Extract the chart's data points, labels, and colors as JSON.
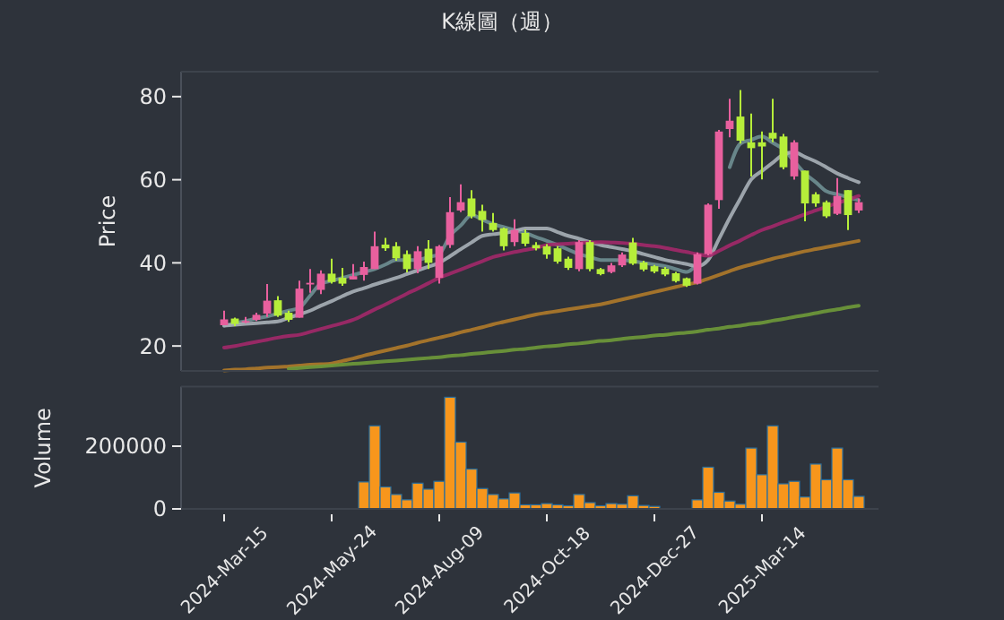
{
  "chart_data": [
    {
      "type": "candlestick",
      "title": "K線圖（週）",
      "ylabel": "Price",
      "tick_labels": "y",
      "categories": [
        null,
        null,
        null,
        null,
        null,
        null,
        null,
        null,
        null,
        null,
        null,
        null,
        null,
        null,
        null,
        null,
        null,
        null,
        null,
        null,
        null,
        null,
        null,
        null,
        null,
        null,
        null,
        null,
        null,
        null,
        null,
        null,
        null,
        null,
        null,
        null,
        null,
        null,
        null,
        null,
        null,
        null,
        null,
        null,
        null,
        null,
        null,
        null,
        null,
        null,
        null,
        null,
        null,
        null,
        null,
        null,
        null,
        null,
        null,
        null
      ],
      "ohlc": [
        [
          25.0,
          28.5,
          25.0,
          26.4
        ],
        [
          26.6,
          26.8,
          24.8,
          25.3
        ],
        [
          25.9,
          27.0,
          25.5,
          26.0
        ],
        [
          26.3,
          28.0,
          26.0,
          27.5
        ],
        [
          27.8,
          34.9,
          27.0,
          30.9
        ],
        [
          31.0,
          32.0,
          27.0,
          27.3
        ],
        [
          28.0,
          28.5,
          25.8,
          26.3
        ],
        [
          26.8,
          35.7,
          26.8,
          33.8
        ],
        [
          34.8,
          38.5,
          32.8,
          35.2
        ],
        [
          33.5,
          38.2,
          32.5,
          37.4
        ],
        [
          37.4,
          41.0,
          35.0,
          35.4
        ],
        [
          36.4,
          38.8,
          34.5,
          35.0
        ],
        [
          36.0,
          39.7,
          36.0,
          36.8
        ],
        [
          37.1,
          40.3,
          35.7,
          39.0
        ],
        [
          38.5,
          47.5,
          38.5,
          44.0
        ],
        [
          44.4,
          46.0,
          42.9,
          43.5
        ],
        [
          44.0,
          45.0,
          40.5,
          41.1
        ],
        [
          42.1,
          43.0,
          37.7,
          38.5
        ],
        [
          38.5,
          44.0,
          37.5,
          42.8
        ],
        [
          43.4,
          45.5,
          38.5,
          40.0
        ],
        [
          36.4,
          44.3,
          35.0,
          44.0
        ],
        [
          44.3,
          55.8,
          43.6,
          52.2
        ],
        [
          52.6,
          58.9,
          52.2,
          54.6
        ],
        [
          55.5,
          57.5,
          50.7,
          51.2
        ],
        [
          52.5,
          54.0,
          47.5,
          50.3
        ],
        [
          49.6,
          52.0,
          47.5,
          47.9
        ],
        [
          48.3,
          48.5,
          43.0,
          44.0
        ],
        [
          45.0,
          50.5,
          44.0,
          47.9
        ],
        [
          47.2,
          48.0,
          44.0,
          44.6
        ],
        [
          44.3,
          45.0,
          43.0,
          43.5
        ],
        [
          44.0,
          44.5,
          41.0,
          42.0
        ],
        [
          43.5,
          44.0,
          39.8,
          40.3
        ],
        [
          41.0,
          41.5,
          38.3,
          38.8
        ],
        [
          38.5,
          45.5,
          38.0,
          45.0
        ],
        [
          45.0,
          45.5,
          38.0,
          38.5
        ],
        [
          38.5,
          38.8,
          37.0,
          37.3
        ],
        [
          37.8,
          40.0,
          37.5,
          39.4
        ],
        [
          39.4,
          42.5,
          39.0,
          42.0
        ],
        [
          44.9,
          46.0,
          39.5,
          39.8
        ],
        [
          40.1,
          40.5,
          38.0,
          38.4
        ],
        [
          39.2,
          39.5,
          37.5,
          37.9
        ],
        [
          38.6,
          39.0,
          36.8,
          37.2
        ],
        [
          37.5,
          37.8,
          35.3,
          35.6
        ],
        [
          36.3,
          36.5,
          34.2,
          34.5
        ],
        [
          35.0,
          42.5,
          34.8,
          42.1
        ],
        [
          42.1,
          54.3,
          41.8,
          54.0
        ],
        [
          55.1,
          72.0,
          53.0,
          71.6
        ],
        [
          72.2,
          79.5,
          70.2,
          74.2
        ],
        [
          75.2,
          81.6,
          68.7,
          69.4
        ],
        [
          69.0,
          75.9,
          60.8,
          67.6
        ],
        [
          69.0,
          71.6,
          60.1,
          68.0
        ],
        [
          71.3,
          79.5,
          69.0,
          69.9
        ],
        [
          70.4,
          71.0,
          62.5,
          63.0
        ],
        [
          60.8,
          69.5,
          60.0,
          69.0
        ],
        [
          62.2,
          62.2,
          50.0,
          54.3
        ],
        [
          56.5,
          57.0,
          53.5,
          54.3
        ],
        [
          54.6,
          55.0,
          50.8,
          51.2
        ],
        [
          51.8,
          60.4,
          51.5,
          56.1
        ],
        [
          57.5,
          57.5,
          47.9,
          51.5
        ],
        [
          52.6,
          55.5,
          52.0,
          54.6
        ]
      ],
      "colors": [
        "#e8609e",
        "#b6ee3a",
        "#e8609e",
        "#e8609e",
        "#e8609e",
        "#b6ee3a",
        "#b6ee3a",
        "#e8609e",
        "#e8609e",
        "#e8609e",
        "#b6ee3a",
        "#b6ee3a",
        "#e8609e",
        "#e8609e",
        "#e8609e",
        "#b6ee3a",
        "#b6ee3a",
        "#b6ee3a",
        "#e8609e",
        "#b6ee3a",
        "#e8609e",
        "#e8609e",
        "#e8609e",
        "#b6ee3a",
        "#b6ee3a",
        "#b6ee3a",
        "#b6ee3a",
        "#e8609e",
        "#b6ee3a",
        "#b6ee3a",
        "#b6ee3a",
        "#b6ee3a",
        "#b6ee3a",
        "#e8609e",
        "#b6ee3a",
        "#b6ee3a",
        "#e8609e",
        "#e8609e",
        "#b6ee3a",
        "#b6ee3a",
        "#b6ee3a",
        "#b6ee3a",
        "#b6ee3a",
        "#b6ee3a",
        "#e8609e",
        "#e8609e",
        "#e8609e",
        "#e8609e",
        "#b6ee3a",
        "#b6ee3a",
        "#b6ee3a",
        "#b6ee3a",
        "#b6ee3a",
        "#e8609e",
        "#b6ee3a",
        "#b6ee3a",
        "#b6ee3a",
        "#e8609e",
        "#b6ee3a",
        "#e8609e"
      ],
      "series": [
        {
          "type": "line",
          "color": "#6f8f94",
          "values": [
            24.9,
            25.5,
            26,
            26.6,
            27.1,
            27.8,
            28.5,
            29.2,
            32.1,
            35,
            35.7,
            36.4,
            37.1,
            37.8,
            38.5,
            39.6,
            40.7,
            40.7,
            40.7,
            41.4,
            42.1,
            46.5,
            49,
            51.5,
            50.4,
            49.3,
            48.6,
            47.9,
            47.2,
            46.2,
            45.3,
            44.3,
            43.2,
            42.1,
            41.4,
            40.7,
            40.7,
            40.7,
            40.4,
            40,
            39.6,
            39.2,
            38.5,
            37.8,
            40,
            null,
            null,
            63,
            68.7,
            69.6,
            70.4,
            68.9,
            67.3,
            64.4,
            61.5,
            59.4,
            57.2,
            56.5,
            55.8,
            55.1
          ]
        },
        {
          "type": "line",
          "color": "#a9b0b8",
          "values": [
            24.9,
            25.1,
            25.3,
            25.5,
            25.7,
            25.9,
            26.8,
            27.6,
            28.5,
            29.7,
            30.8,
            32,
            33.1,
            33.9,
            34.8,
            35.6,
            36.4,
            37.3,
            38.2,
            39.1,
            40,
            41.6,
            43.3,
            44.9,
            46.5,
            46.9,
            47.2,
            47.6,
            48.3,
            48.3,
            48.3,
            47.4,
            46.5,
            45.8,
            45,
            44.3,
            43.8,
            43.3,
            42.8,
            42.1,
            41.4,
            40.7,
            40.2,
            39.7,
            39.2,
            40.7,
            45.7,
            50.8,
            55.5,
            60.1,
            62.1,
            64.1,
            66.1,
            66.6,
            65.5,
            64.4,
            63,
            61.5,
            60.4,
            59.4
          ]
        },
        {
          "type": "line",
          "color": "#a3286a",
          "values": [
            19.6,
            20,
            20.5,
            21,
            21.5,
            22,
            22.4,
            22.7,
            23.4,
            24.1,
            24.8,
            25.5,
            26.3,
            27.5,
            28.8,
            30,
            31.3,
            32.6,
            33.8,
            35.1,
            36.4,
            37.4,
            38.4,
            39.4,
            40.4,
            41.4,
            42,
            42.6,
            43.1,
            43.6,
            44.3,
            44.5,
            44.6,
            44.8,
            44.9,
            45,
            44.9,
            44.8,
            44.6,
            44.3,
            44,
            43.6,
            43.1,
            42.6,
            42.1,
            41.7,
            42.9,
            44.2,
            45.4,
            46.7,
            47.9,
            48.8,
            49.8,
            50.7,
            51.7,
            52.6,
            53.5,
            54.4,
            55.2,
            56.1
          ]
        },
        {
          "type": "line",
          "color": "#b07a2a",
          "values": [
            14.1,
            14.3,
            14.4,
            14.6,
            14.8,
            14.9,
            15.1,
            15.3,
            15.5,
            15.6,
            15.8,
            16.4,
            17,
            17.7,
            18.3,
            18.9,
            19.5,
            20.1,
            20.8,
            21.4,
            22,
            22.6,
            23.3,
            23.9,
            24.5,
            25.2,
            25.8,
            26.4,
            27,
            27.6,
            28,
            28.4,
            28.8,
            29.2,
            29.6,
            30,
            30.6,
            31.2,
            31.8,
            32.4,
            33,
            33.6,
            34.2,
            34.8,
            35.3,
            36.2,
            37.1,
            38,
            38.9,
            39.6,
            40.3,
            41,
            41.6,
            42.2,
            42.8,
            43.3,
            43.8,
            44.3,
            44.8,
            45.3
          ]
        },
        {
          "type": "line",
          "color": "#6f9a3a",
          "values": [
            null,
            null,
            null,
            null,
            null,
            null,
            14.5,
            14.7,
            14.9,
            15.1,
            15.3,
            15.5,
            15.7,
            15.9,
            16.1,
            16.3,
            16.5,
            16.7,
            16.9,
            17.1,
            17.3,
            17.6,
            17.8,
            18.1,
            18.3,
            18.6,
            18.8,
            19.1,
            19.3,
            19.6,
            19.9,
            20.1,
            20.4,
            20.6,
            20.9,
            21.2,
            21.4,
            21.7,
            22,
            22.2,
            22.5,
            22.7,
            23,
            23.2,
            23.5,
            23.9,
            24.2,
            24.6,
            24.9,
            25.3,
            25.6,
            26.1,
            26.5,
            27,
            27.4,
            27.9,
            28.4,
            28.8,
            29.3,
            29.7
          ]
        }
      ],
      "ylim": [
        14,
        86
      ],
      "yticks": [
        20,
        40,
        60,
        80
      ]
    },
    {
      "type": "bar",
      "ylabel": "Volume",
      "color": "#f7961c",
      "categories": [
        "2024-Mar-15",
        null,
        null,
        null,
        null,
        null,
        null,
        null,
        null,
        null,
        "2024-May-24",
        null,
        null,
        null,
        null,
        null,
        null,
        null,
        null,
        null,
        "2024-Aug-09",
        null,
        null,
        null,
        null,
        null,
        null,
        null,
        null,
        null,
        "2024-Oct-18",
        null,
        null,
        null,
        null,
        null,
        null,
        null,
        null,
        null,
        "2024-Dec-27",
        null,
        null,
        null,
        null,
        null,
        null,
        null,
        null,
        null,
        "2025-Mar-14",
        null,
        null,
        null,
        null,
        null,
        null,
        null,
        null,
        null
      ],
      "values": [
        null,
        null,
        null,
        null,
        null,
        null,
        null,
        0,
        0,
        0,
        0,
        0,
        0,
        86000,
        265000,
        70000,
        46000,
        29000,
        82000,
        63000,
        88000,
        356000,
        213000,
        127000,
        65000,
        46000,
        32000,
        51000,
        13000,
        13000,
        17000,
        13000,
        10000,
        46000,
        20000,
        10000,
        17000,
        15000,
        42000,
        11000,
        8000,
        0,
        0,
        0,
        29000,
        133000,
        53000,
        25000,
        15000,
        194000,
        109000,
        265000,
        80000,
        88000,
        38000,
        143000,
        93000,
        194000,
        93000,
        40000
      ],
      "ylim": [
        0,
        390000
      ],
      "yticks": [
        0,
        200000
      ]
    }
  ]
}
